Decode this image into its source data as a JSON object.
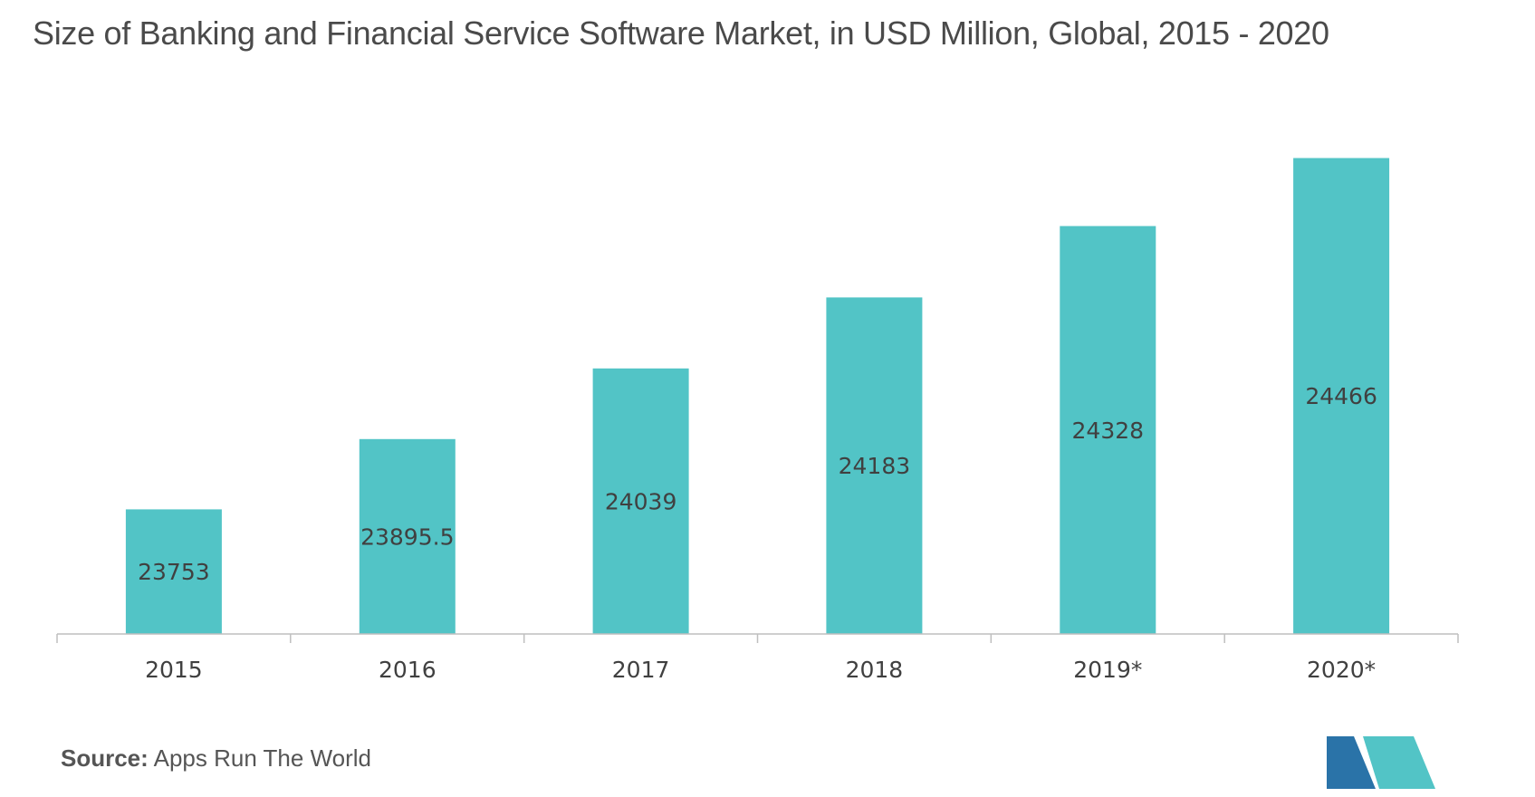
{
  "title": "Size of Banking and Financial Service Software Market, in USD Million, Global, 2015 - 2020",
  "source": {
    "label": "Source:",
    "text": "Apps Run The World"
  },
  "colors": {
    "bar": "#52c4c6",
    "axis": "#bfbfbf",
    "text": "#404040",
    "logo_dark": "#2a73a8",
    "logo_light": "#52c4c6"
  },
  "chart_data": {
    "type": "bar",
    "categories": [
      "2015",
      "2016",
      "2017",
      "2018",
      "2019*",
      "2020*"
    ],
    "values": [
      23753,
      23895.5,
      24039,
      24183,
      24328,
      24466
    ],
    "labels": [
      "23753",
      "23895.5",
      "24039",
      "24183",
      "24328",
      "24466"
    ],
    "title": "Size of Banking and Financial Service Software Market, in USD Million, Global, 2015 - 2020",
    "xlabel": "",
    "ylabel": "",
    "ylim": [
      23500,
      24500
    ],
    "grid": false,
    "legend": "none"
  }
}
